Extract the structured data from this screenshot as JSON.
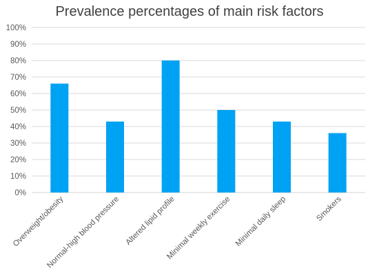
{
  "chart_data": {
    "type": "bar",
    "title": "Prevalence percentages of main risk factors",
    "categories": [
      "Overweight/obesity",
      "Normal-high blood pressure",
      "Altered lipid profile",
      "Minimal weekly exercise",
      "Minimal daily sleep",
      "Smokers"
    ],
    "values": [
      66,
      43,
      80,
      50,
      43,
      36
    ],
    "ylim": [
      0,
      100
    ],
    "yticks": [
      "0%",
      "10%",
      "20%",
      "30%",
      "40%",
      "50%",
      "60%",
      "70%",
      "80%",
      "90%",
      "100%"
    ],
    "y_unit": "%",
    "grid": true,
    "legend": "none",
    "bar_color": "#00A2F3",
    "grid_color": "#D9D9D9"
  }
}
